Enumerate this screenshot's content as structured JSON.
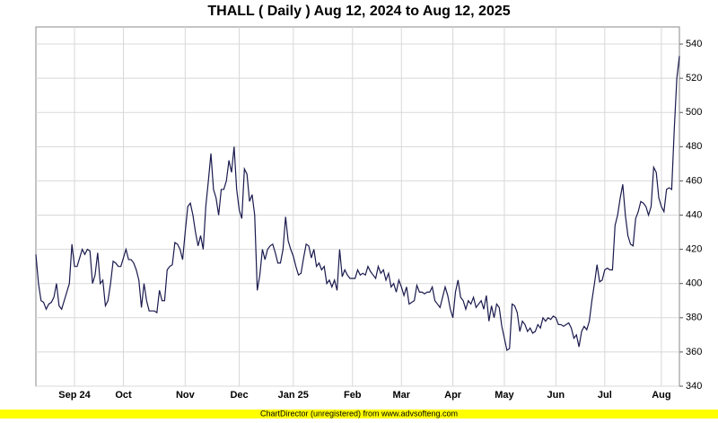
{
  "chart_data": {
    "type": "line",
    "title": "THALL ( Daily ) Aug 12, 2024 to Aug 12, 2025",
    "footer": "ChartDirector (unregistered) from www.advsofteng.com",
    "categories": [
      null,
      null,
      null,
      null,
      null,
      null,
      null,
      null,
      null,
      null,
      null,
      null,
      null,
      null,
      null,
      "Sep 24",
      null,
      null,
      null,
      null,
      null,
      null,
      null,
      null,
      null,
      null,
      null,
      null,
      null,
      null,
      null,
      null,
      null,
      null,
      "Oct",
      null,
      null,
      null,
      null,
      null,
      null,
      null,
      null,
      null,
      null,
      null,
      null,
      null,
      null,
      null,
      null,
      null,
      null,
      null,
      null,
      null,
      null,
      null,
      "Nov",
      null,
      null,
      null,
      null,
      null,
      null,
      null,
      null,
      null,
      null,
      null,
      null,
      null,
      null,
      null,
      null,
      null,
      null,
      null,
      null,
      "Dec",
      null,
      null,
      null,
      null,
      null,
      null,
      null,
      null,
      null,
      null,
      null,
      null,
      null,
      null,
      null,
      null,
      null,
      null,
      null,
      null,
      "Jan 25",
      null,
      null,
      null,
      null,
      null,
      null,
      null,
      null,
      null,
      null,
      null,
      null,
      null,
      null,
      null,
      null,
      null,
      null,
      null,
      null,
      null,
      null,
      "Feb",
      null,
      null,
      null,
      null,
      null,
      null,
      null,
      null,
      null,
      null,
      null,
      null,
      null,
      null,
      null,
      null,
      null,
      null,
      "Mar",
      null,
      null,
      null,
      null,
      null,
      null,
      null,
      null,
      null,
      null,
      null,
      null,
      null,
      null,
      null,
      null,
      null,
      null,
      null,
      "Apr",
      null,
      null,
      null,
      null,
      null,
      null,
      null,
      null,
      null,
      null,
      null,
      null,
      null,
      null,
      null,
      null,
      null,
      null,
      null,
      "May",
      null,
      null,
      null,
      null,
      null,
      null,
      null,
      null,
      null,
      null,
      null,
      null,
      null,
      null,
      null,
      null,
      null,
      null,
      null,
      "Jun",
      null,
      null,
      null,
      null,
      null,
      null,
      null,
      null,
      null,
      null,
      null,
      null,
      null,
      null,
      null,
      null,
      null,
      null,
      "Jul",
      null,
      null,
      null,
      null,
      null,
      null,
      null,
      null,
      null,
      null,
      null,
      null,
      null,
      null,
      null,
      null,
      null,
      null,
      null,
      null,
      null,
      "Aug",
      null,
      null,
      null,
      null,
      null,
      null,
      null
    ],
    "series": [
      {
        "name": "THALL",
        "color": "#1a1a4e",
        "values": [
          417,
          400,
          390,
          389,
          385,
          388,
          389,
          392,
          400,
          387,
          385,
          390,
          395,
          400,
          423,
          410,
          410,
          415,
          420,
          417,
          420,
          419,
          400,
          405,
          418,
          400,
          402,
          387,
          390,
          400,
          413,
          412,
          410,
          410,
          415,
          420,
          414,
          414,
          412,
          408,
          402,
          386,
          400,
          390,
          384,
          384,
          384,
          383,
          396,
          390,
          390,
          408,
          410,
          411,
          424,
          423,
          420,
          414,
          430,
          445,
          447,
          440,
          430,
          422,
          428,
          420,
          445,
          460,
          476,
          455,
          450,
          440,
          455,
          455,
          460,
          472,
          465,
          480,
          455,
          443,
          438,
          467,
          464,
          448,
          452,
          440,
          396,
          405,
          420,
          414,
          420,
          422,
          423,
          418,
          412,
          412,
          420,
          439,
          425,
          420,
          416,
          410,
          405,
          406,
          415,
          423,
          422,
          415,
          420,
          410,
          412,
          408,
          410,
          400,
          402,
          398,
          402,
          396,
          420,
          404,
          408,
          405,
          403,
          403,
          403,
          408,
          405,
          406,
          405,
          410,
          407,
          405,
          403,
          410,
          406,
          408,
          402,
          406,
          398,
          400,
          395,
          402,
          398,
          393,
          398,
          388,
          389,
          390,
          399,
          395,
          395,
          394,
          395,
          395,
          398,
          390,
          388,
          386,
          392,
          398,
          393,
          385,
          380,
          395,
          402,
          392,
          390,
          385,
          390,
          388,
          392,
          386,
          388,
          390,
          385,
          393,
          378,
          387,
          380,
          388,
          386,
          375,
          368,
          361,
          362,
          388,
          387,
          383,
          372,
          378,
          376,
          372,
          374,
          371,
          372,
          376,
          374,
          380,
          378,
          380,
          379,
          381,
          380,
          376,
          376,
          375,
          376,
          377,
          374,
          368,
          370,
          363,
          372,
          375,
          373,
          378,
          390,
          400,
          411,
          401,
          402,
          408,
          409,
          408,
          408,
          434,
          440,
          450,
          458,
          440,
          428,
          423,
          422,
          438,
          442,
          448,
          447,
          445,
          440,
          445,
          468,
          465,
          450,
          445,
          442,
          455,
          456,
          455,
          490,
          520,
          533
        ]
      }
    ],
    "ylim": [
      340,
      550
    ],
    "yticks": [
      340,
      360,
      380,
      400,
      420,
      440,
      460,
      480,
      500,
      520,
      540
    ],
    "grid": true
  }
}
